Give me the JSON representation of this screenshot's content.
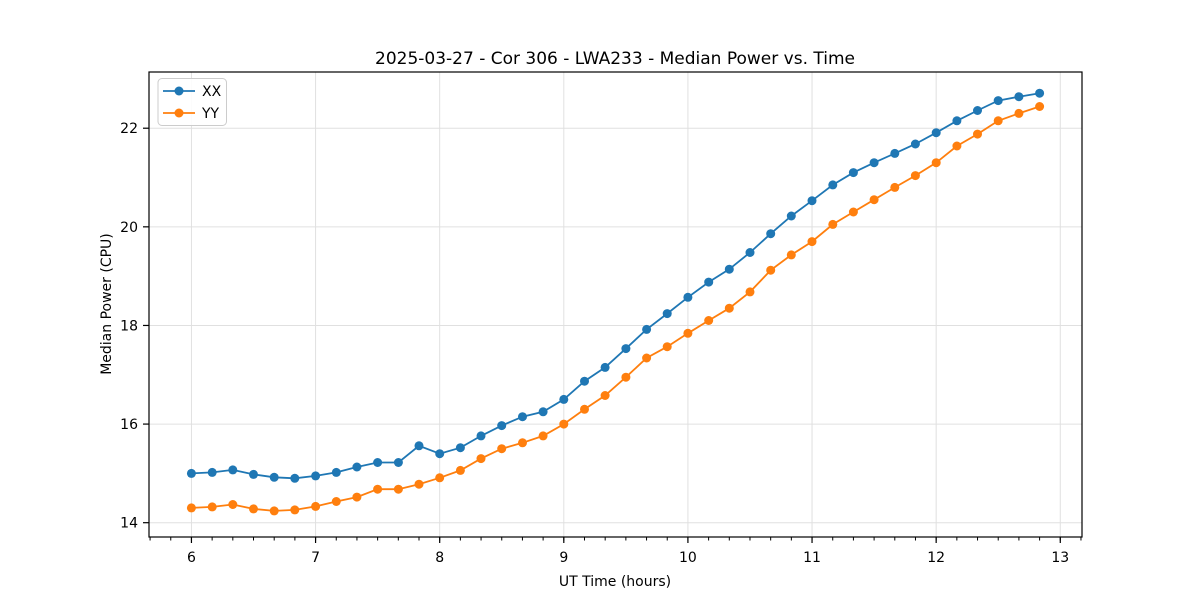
{
  "chart_data": {
    "type": "line",
    "title": "2025-03-27 - Cor 306 - LWA233 - Median Power vs. Time",
    "xlabel": "UT Time (hours)",
    "ylabel": "Median Power (CPU)",
    "xlim": [
      5.658,
      13.175
    ],
    "ylim": [
      13.71,
      23.14
    ],
    "x_ticks": [
      6,
      7,
      8,
      9,
      10,
      11,
      12,
      13
    ],
    "y_ticks": [
      14,
      16,
      18,
      20,
      22
    ],
    "x_minor_tick_interval": 0.1666667,
    "grid": "major",
    "grid_color": "#e0e0e0",
    "spine_color": "#000000",
    "legend_position": "upper-left",
    "x": [
      6.0,
      6.167,
      6.333,
      6.5,
      6.667,
      6.833,
      7.0,
      7.167,
      7.333,
      7.5,
      7.667,
      7.833,
      8.0,
      8.167,
      8.333,
      8.5,
      8.667,
      8.833,
      9.0,
      9.167,
      9.333,
      9.5,
      9.667,
      9.833,
      10.0,
      10.167,
      10.333,
      10.5,
      10.667,
      10.833,
      11.0,
      11.167,
      11.333,
      11.5,
      11.667,
      11.833,
      12.0,
      12.167,
      12.333,
      12.5,
      12.667,
      12.833
    ],
    "series": [
      {
        "name": "XX",
        "color": "#1f77b4",
        "values": [
          15.0,
          15.02,
          15.07,
          14.98,
          14.92,
          14.9,
          14.95,
          15.02,
          15.13,
          15.22,
          15.22,
          15.56,
          15.4,
          15.52,
          15.76,
          15.97,
          16.15,
          16.25,
          16.5,
          16.87,
          17.15,
          17.53,
          17.92,
          18.24,
          18.57,
          18.88,
          19.14,
          19.48,
          19.86,
          20.22,
          20.53,
          20.85,
          21.1,
          21.3,
          21.49,
          21.68,
          21.91,
          22.15,
          22.36,
          22.56,
          22.64,
          22.71
        ]
      },
      {
        "name": "YY",
        "color": "#ff7f0e",
        "values": [
          14.3,
          14.32,
          14.37,
          14.28,
          14.24,
          14.26,
          14.33,
          14.43,
          14.52,
          14.68,
          14.68,
          14.78,
          14.91,
          15.06,
          15.3,
          15.5,
          15.62,
          15.76,
          16.0,
          16.3,
          16.58,
          16.95,
          17.34,
          17.57,
          17.84,
          18.1,
          18.35,
          18.68,
          19.12,
          19.43,
          19.7,
          20.05,
          20.3,
          20.55,
          20.8,
          21.04,
          21.3,
          21.64,
          21.88,
          22.15,
          22.3,
          22.44
        ]
      }
    ]
  }
}
